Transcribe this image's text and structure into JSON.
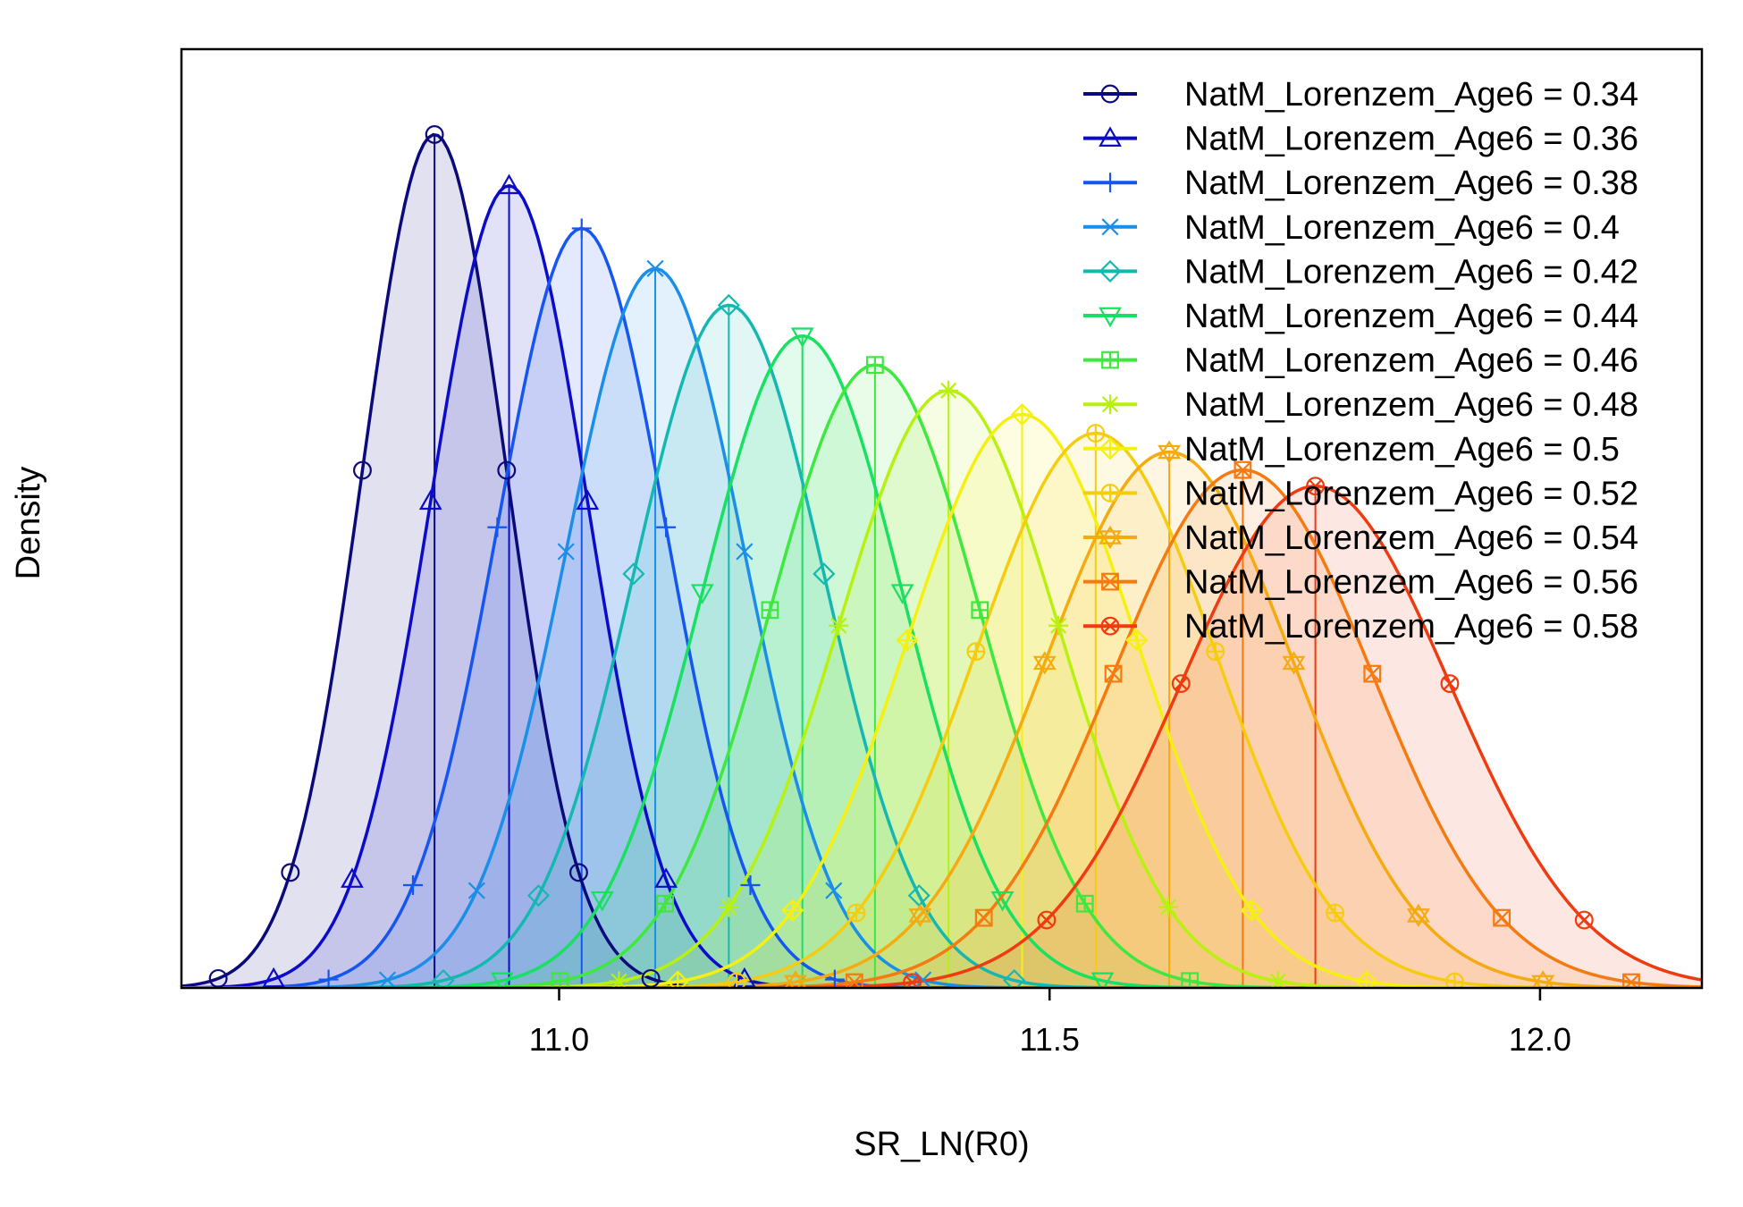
{
  "chart_data": {
    "type": "area",
    "title": "",
    "xlabel": "SR_LN(R0)",
    "ylabel": "Density",
    "xlim": [
      10.615,
      12.165
    ],
    "ylim": [
      0,
      1.1
    ],
    "x_ticks": [
      "11.0",
      "11.5",
      "12.0"
    ],
    "x_tick_values": [
      11.0,
      11.5,
      12.0
    ],
    "y_ticks_shown": false,
    "grid": false,
    "legend_position": "top-right",
    "series": [
      {
        "name": "NatM_Lorenzem_Age6 = 0.34",
        "mean": 10.873,
        "sd": 0.0735,
        "peak": 1.0,
        "color": "#0a0a7a",
        "marker": "circle"
      },
      {
        "name": "NatM_Lorenzem_Age6 = 0.36",
        "mean": 10.949,
        "sd": 0.08,
        "peak": 0.94,
        "color": "#0c0cc8",
        "marker": "triangle-up"
      },
      {
        "name": "NatM_Lorenzem_Age6 = 0.38",
        "mean": 11.023,
        "sd": 0.086,
        "peak": 0.89,
        "color": "#1555f0",
        "marker": "plus"
      },
      {
        "name": "NatM_Lorenzem_Age6 = 0.4",
        "mean": 11.098,
        "sd": 0.091,
        "peak": 0.843,
        "color": "#1a8ee8",
        "marker": "cross"
      },
      {
        "name": "NatM_Lorenzem_Age6 = 0.42",
        "mean": 11.173,
        "sd": 0.097,
        "peak": 0.8,
        "color": "#14b8b0",
        "marker": "diamond"
      },
      {
        "name": "NatM_Lorenzem_Age6 = 0.44",
        "mean": 11.248,
        "sd": 0.102,
        "peak": 0.764,
        "color": "#18e060",
        "marker": "triangle-down"
      },
      {
        "name": "NatM_Lorenzem_Age6 = 0.46",
        "mean": 11.322,
        "sd": 0.107,
        "peak": 0.73,
        "color": "#3ee83e",
        "marker": "square-plus"
      },
      {
        "name": "NatM_Lorenzem_Age6 = 0.48",
        "mean": 11.397,
        "sd": 0.112,
        "peak": 0.7,
        "color": "#b8f010",
        "marker": "asterisk"
      },
      {
        "name": "NatM_Lorenzem_Age6 = 0.5",
        "mean": 11.472,
        "sd": 0.117,
        "peak": 0.672,
        "color": "#f5f010",
        "marker": "diamond-plus"
      },
      {
        "name": "NatM_Lorenzem_Age6 = 0.52",
        "mean": 11.547,
        "sd": 0.122,
        "peak": 0.65,
        "color": "#f5cc10",
        "marker": "circle-plus"
      },
      {
        "name": "NatM_Lorenzem_Age6 = 0.54",
        "mean": 11.622,
        "sd": 0.127,
        "peak": 0.628,
        "color": "#f5aa10",
        "marker": "star-of-david"
      },
      {
        "name": "NatM_Lorenzem_Age6 = 0.56",
        "mean": 11.697,
        "sd": 0.132,
        "peak": 0.607,
        "color": "#f57a10",
        "marker": "square-cross"
      },
      {
        "name": "NatM_Lorenzem_Age6 = 0.58",
        "mean": 11.771,
        "sd": 0.137,
        "peak": 0.588,
        "color": "#f03a10",
        "marker": "circle-cross"
      }
    ]
  }
}
